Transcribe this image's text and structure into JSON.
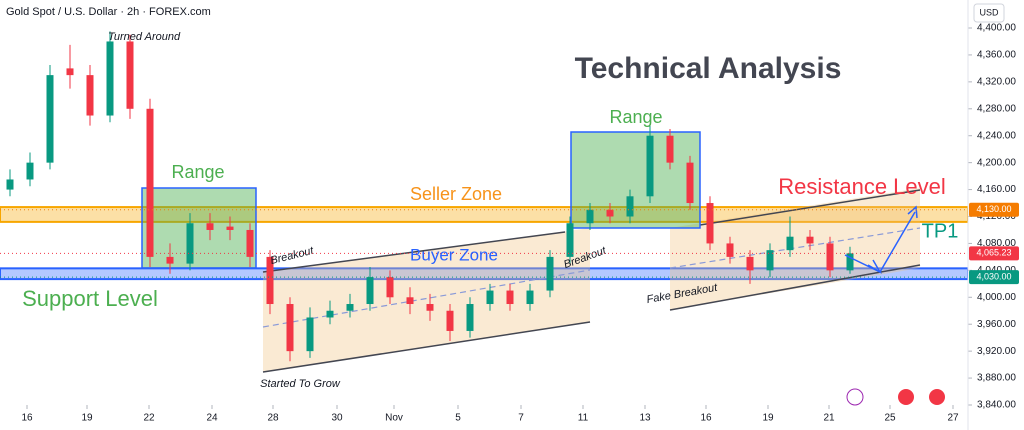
{
  "chart_data": {
    "type": "candlestick",
    "title": "Gold Spot / U.S. Dollar · 2h · FOREX.com",
    "currency": "USD",
    "up_color": "#089981",
    "down_color": "#f23645",
    "x": [
      1,
      3,
      5,
      7,
      9,
      11,
      13,
      15,
      17,
      19,
      21,
      23,
      25,
      27,
      29,
      31,
      33,
      35,
      37,
      39,
      41,
      43,
      45,
      47,
      49,
      51,
      53,
      55,
      57,
      59,
      61,
      63,
      65,
      67,
      69,
      71,
      73,
      75,
      77,
      79,
      81,
      83,
      85
    ],
    "open": [
      4160,
      4175,
      4200,
      4340,
      4330,
      4270,
      4380,
      4280,
      4060,
      4050,
      4110,
      4105,
      4100,
      4060,
      3990,
      3920,
      3970,
      3980,
      3990,
      4030,
      4000,
      3990,
      3980,
      3950,
      3990,
      4010,
      3990,
      4010,
      4060,
      4110,
      4130,
      4120,
      4150,
      4240,
      4200,
      4140,
      4080,
      4060,
      4040,
      4070,
      4090,
      4080,
      4040
    ],
    "high": [
      4190,
      4215,
      4345,
      4375,
      4345,
      4395,
      4390,
      4295,
      4080,
      4125,
      4125,
      4120,
      4110,
      4070,
      4000,
      3985,
      3995,
      4005,
      4045,
      4040,
      4015,
      4005,
      3990,
      4000,
      4020,
      4020,
      4020,
      4070,
      4120,
      4140,
      4140,
      4160,
      4255,
      4250,
      4210,
      4150,
      4090,
      4070,
      4080,
      4120,
      4100,
      4090,
      4075
    ],
    "low": [
      4150,
      4165,
      4190,
      4310,
      4255,
      4260,
      4265,
      4045,
      4035,
      4040,
      4085,
      4085,
      4045,
      3975,
      3905,
      3910,
      3960,
      3970,
      3980,
      3990,
      3975,
      3965,
      3935,
      3940,
      3980,
      3980,
      3980,
      4000,
      4050,
      4100,
      4110,
      4110,
      4140,
      4190,
      4130,
      4070,
      4050,
      4020,
      4030,
      4060,
      4070,
      4030,
      4035
    ],
    "close": [
      4175,
      4200,
      4330,
      4330,
      4270,
      4380,
      4280,
      4060,
      4050,
      4110,
      4100,
      4100,
      4060,
      3990,
      3920,
      3970,
      3980,
      3990,
      4030,
      4000,
      3990,
      3980,
      3950,
      3990,
      4010,
      3990,
      4010,
      4060,
      4110,
      4130,
      4120,
      4150,
      4240,
      4200,
      4140,
      4080,
      4060,
      4040,
      4070,
      4090,
      4080,
      4040,
      4065.23
    ],
    "xlim": [
      0,
      96.5
    ],
    "xticks": [
      {
        "value": 2.7,
        "label": "16"
      },
      {
        "value": 8.7,
        "label": "19"
      },
      {
        "value": 14.9,
        "label": "22"
      },
      {
        "value": 21.2,
        "label": "24"
      },
      {
        "value": 27.3,
        "label": "28"
      },
      {
        "value": 33.7,
        "label": "30"
      },
      {
        "value": 39.4,
        "label": "Nov"
      },
      {
        "value": 45.8,
        "label": "5"
      },
      {
        "value": 52.1,
        "label": "7"
      },
      {
        "value": 58.3,
        "label": "11"
      },
      {
        "value": 64.5,
        "label": "13"
      },
      {
        "value": 70.6,
        "label": "16"
      },
      {
        "value": 76.8,
        "label": "19"
      },
      {
        "value": 82.9,
        "label": "21"
      },
      {
        "value": 89.0,
        "label": "25"
      },
      {
        "value": 95.3,
        "label": "27"
      }
    ],
    "ylim": [
      3840,
      4400
    ],
    "yticks": [
      {
        "value": 3840,
        "label": "3,840.00"
      },
      {
        "value": 3880,
        "label": "3,880.00"
      },
      {
        "value": 3920,
        "label": "3,920.00"
      },
      {
        "value": 3960,
        "label": "3,960.00"
      },
      {
        "value": 4000,
        "label": "4,000.00"
      },
      {
        "value": 4040,
        "label": "4,040.00"
      },
      {
        "value": 4080,
        "label": "4,080.00"
      },
      {
        "value": 4120,
        "label": "4,120.00"
      },
      {
        "value": 4160,
        "label": "4,160.00"
      },
      {
        "value": 4200,
        "label": "4,200.00"
      },
      {
        "value": 4240,
        "label": "4,240.00"
      },
      {
        "value": 4280,
        "label": "4,280.00"
      },
      {
        "value": 4320,
        "label": "4,320.00"
      },
      {
        "value": 4360,
        "label": "4,360.00"
      },
      {
        "value": 4400,
        "label": "4,400.00"
      }
    ],
    "grid": false,
    "price_levels": [
      {
        "value": 4130,
        "label": "4,130.00",
        "color": "#f57c00"
      },
      {
        "value": 4065.23,
        "label": "4,065.23",
        "color": "#f23645"
      },
      {
        "value": 4030,
        "label": "4,030.00",
        "color": "#089981"
      }
    ],
    "zones": [
      {
        "name": "Seller Zone",
        "low": 4112,
        "high": 4134,
        "color": "#f7a600"
      },
      {
        "name": "Buyer Zone",
        "low": 4027,
        "high": 4043,
        "color": "#2962ff"
      }
    ],
    "annotations": {
      "heading": "Technical Analysis",
      "turned": "Turned Around",
      "range1": "Range",
      "range2": "Range",
      "resistance": "Resistance Level",
      "support": "Support Level",
      "breakout1": "Breakout",
      "breakout2": "Breakout",
      "grow": "Started To Grow",
      "fake": "Fake Breakout",
      "tp": "TP1"
    }
  }
}
